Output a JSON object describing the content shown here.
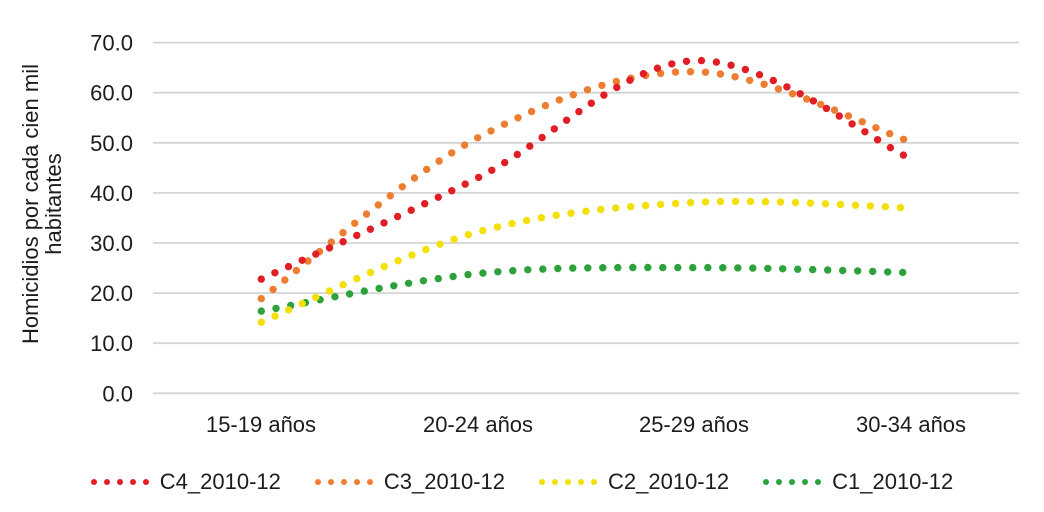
{
  "chart_data": {
    "type": "line",
    "line_style": "dotted-smooth",
    "categories": [
      "15-19 años",
      "20-24 años",
      "25-29 años",
      "30-34 años"
    ],
    "series": [
      {
        "name": "C4_2010-12",
        "color": "#e11e25",
        "values": [
          22.8,
          43.0,
          66.4,
          46.8
        ]
      },
      {
        "name": "C3_2010-12",
        "color": "#ed7d31",
        "values": [
          18.9,
          51.0,
          64.2,
          50.2
        ]
      },
      {
        "name": "C2_2010-12",
        "color": "#f3e008",
        "values": [
          14.2,
          32.2,
          38.1,
          37.0
        ]
      },
      {
        "name": "C1_2010-12",
        "color": "#2da13c",
        "values": [
          16.4,
          23.9,
          25.1,
          24.1
        ]
      }
    ],
    "ylabel": "Homicidios por cada cien mil habitantes",
    "ylabel_lines": [
      "Homicidios por cada cien mil",
      "habitantes"
    ],
    "yticks": [
      "0.0",
      "10.0",
      "20.0",
      "30.0",
      "40.0",
      "50.0",
      "60.0",
      "70.0"
    ],
    "ylim": [
      0,
      70
    ],
    "grid": true,
    "legend_position": "bottom"
  },
  "colors": {
    "grid": "#d4d4d4",
    "text": "#1c1c1c",
    "background": "#ffffff"
  }
}
